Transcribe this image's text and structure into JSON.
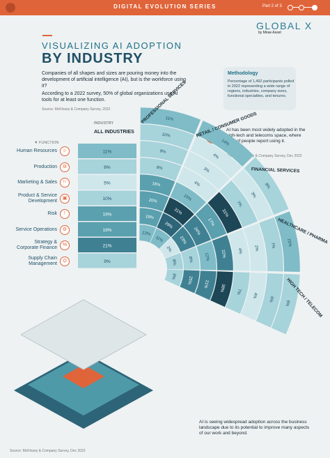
{
  "header": {
    "series": "DIGITAL EVOLUTION SERIES",
    "part": "Part 2 of 3"
  },
  "brand": {
    "name": "GLOBAL X",
    "sub": "by Mirae Asset"
  },
  "title": {
    "sub": "VISUALIZING AI ADOPTION",
    "main": "BY INDUSTRY"
  },
  "intro": {
    "p1": "Companies of all shapes and sizes are pouring money into the development of artificial intelligence (AI), but is the workforce using it?",
    "p2": "According to a 2022 survey, 50% of global organizations use AI tools for at least one function.",
    "source": "Source:  McKinsey & Company Survey, 2022"
  },
  "methodology": {
    "title": "Methodology",
    "body": "Percentage of 1,492 participants polled in 2022 representing a wide range of regions, industries, company sizes, functional specialties, and tenures."
  },
  "callout": {
    "text": "AI has been most widely adopted in the high-tech and telecoms space, where 38% of people report using it.",
    "source": "Source:  McKinsey & Company Survey, Dec 2022"
  },
  "footer": {
    "note": "AI is seeing widespread adoption across the business landscape due to its potential to improve many aspects of our work and beyond.",
    "source": "Source:  McKinsey & Company Survey, Dec 2022"
  },
  "icons": [
    "person-icon",
    "gear-icon",
    "marketing-icon",
    "box-icon",
    "warning-icon",
    "settings-icon",
    "percent-icon",
    "supply-chain-icon"
  ],
  "colors": {
    "accent": "#e0643a",
    "light": "#cde6ea",
    "mid": "#4f9aa9",
    "dark": "#1f4f66",
    "darkest": "#1a3a48"
  },
  "chart_data": {
    "type": "heatmap",
    "function_axis_label": "FUNCTION",
    "industry_axis_label": "INDUSTRY",
    "functions": [
      "Human Resources",
      "Production",
      "Marketing & Sales",
      "Product & Service Development",
      "Risk",
      "Service Operations",
      "Strategy & Corporate Finance",
      "Supply Chain Management"
    ],
    "all_industries": {
      "name": "ALL INDUSTRIES",
      "values": [
        11,
        8,
        5,
        10,
        19,
        19,
        21,
        9
      ]
    },
    "industries": [
      {
        "name": "PROFESSIONAL SERVICES",
        "values": [
          11,
          10,
          9,
          8,
          16,
          20,
          19,
          12
        ]
      },
      {
        "name": "RETAIL / CONSUMER GOODS",
        "values": [
          14,
          4,
          3,
          4,
          15,
          31,
          29,
          11
        ]
      },
      {
        "name": "FINANCIAL SERVICES",
        "values": [
          8,
          3,
          7,
          31,
          17,
          24,
          23,
          2
        ]
      },
      {
        "name": "HEALTHCARE / PHARMA",
        "values": [
          15,
          7,
          2,
          4,
          22,
          12,
          8,
          8
        ]
      },
      {
        "name": "HIGH TECH / TELECOM",
        "values": [
          6,
          6,
          4,
          7,
          38,
          21,
          25,
          8
        ]
      }
    ],
    "value_unit": "%"
  }
}
